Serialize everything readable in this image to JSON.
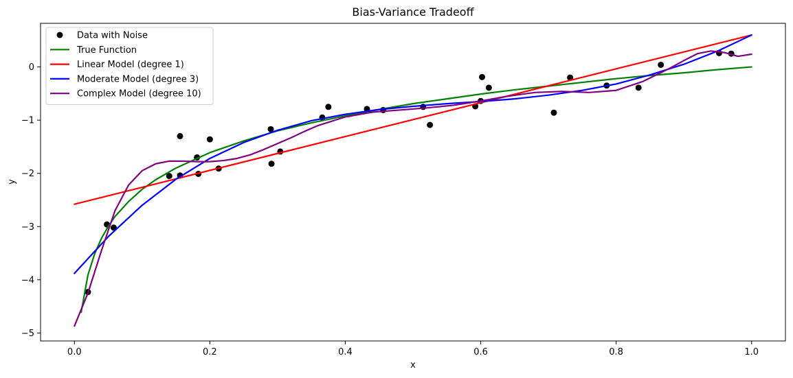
{
  "chart_data": {
    "type": "line",
    "title": "Bias-Variance Tradeoff",
    "xlabel": "x",
    "ylabel": "y",
    "xlim": [
      -0.05,
      1.05
    ],
    "ylim": [
      -5.15,
      0.82
    ],
    "xticks": [
      0.0,
      0.2,
      0.4,
      0.6,
      0.8,
      1.0
    ],
    "xtick_labels": [
      "0.0",
      "0.2",
      "0.4",
      "0.6",
      "0.8",
      "1.0"
    ],
    "yticks": [
      -5,
      -4,
      -3,
      -2,
      -1,
      0
    ],
    "ytick_labels": [
      "−5",
      "−4",
      "−3",
      "−2",
      "−1",
      "0"
    ],
    "grid": false,
    "legend_position": "top-left",
    "scatter": {
      "name": "Data with Noise",
      "color": "#000000",
      "x": [
        0.02,
        0.048,
        0.058,
        0.14,
        0.156,
        0.156,
        0.181,
        0.183,
        0.2,
        0.213,
        0.29,
        0.291,
        0.304,
        0.366,
        0.375,
        0.432,
        0.456,
        0.515,
        0.525,
        0.592,
        0.6,
        0.602,
        0.612,
        0.708,
        0.732,
        0.786,
        0.833,
        0.866,
        0.952,
        0.97
      ],
      "y": [
        -4.23,
        -2.96,
        -3.02,
        -2.05,
        -1.3,
        -2.04,
        -1.7,
        -2.01,
        -1.36,
        -1.91,
        -1.17,
        -1.82,
        -1.59,
        -0.95,
        -0.75,
        -0.79,
        -0.81,
        -0.75,
        -1.09,
        -0.74,
        -0.64,
        -0.19,
        -0.39,
        -0.86,
        -0.2,
        -0.35,
        -0.39,
        0.04,
        0.26,
        0.25
      ]
    },
    "series": [
      {
        "name": "True Function",
        "color": "#008000",
        "x": [
          0.01,
          0.02,
          0.03,
          0.04,
          0.05,
          0.06,
          0.08,
          0.1,
          0.12,
          0.15,
          0.2,
          0.25,
          0.3,
          0.35,
          0.4,
          0.45,
          0.5,
          0.55,
          0.6,
          0.65,
          0.7,
          0.75,
          0.8,
          0.85,
          0.9,
          0.95,
          1.0
        ],
        "y": [
          -4.61,
          -3.91,
          -3.51,
          -3.22,
          -3.0,
          -2.81,
          -2.53,
          -2.3,
          -2.12,
          -1.9,
          -1.61,
          -1.39,
          -1.2,
          -1.05,
          -0.92,
          -0.8,
          -0.69,
          -0.6,
          -0.51,
          -0.43,
          -0.36,
          -0.29,
          -0.22,
          -0.16,
          -0.11,
          -0.05,
          0.0
        ]
      },
      {
        "name": "Linear Model (degree 1)",
        "color": "#ff0000",
        "x": [
          0.0,
          1.0
        ],
        "y": [
          -2.58,
          0.6
        ]
      },
      {
        "name": "Moderate Model (degree 3)",
        "color": "#0000ff",
        "x": [
          0.0,
          0.05,
          0.1,
          0.15,
          0.2,
          0.25,
          0.3,
          0.35,
          0.4,
          0.45,
          0.5,
          0.55,
          0.6,
          0.65,
          0.7,
          0.75,
          0.8,
          0.85,
          0.9,
          0.95,
          1.0
        ],
        "y": [
          -3.88,
          -3.19,
          -2.6,
          -2.11,
          -1.72,
          -1.42,
          -1.19,
          -1.01,
          -0.89,
          -0.8,
          -0.74,
          -0.69,
          -0.65,
          -0.6,
          -0.53,
          -0.44,
          -0.32,
          -0.15,
          0.05,
          0.3,
          0.6
        ]
      },
      {
        "name": "Complex Model (degree 10)",
        "color": "#800080",
        "x": [
          0.0,
          0.02,
          0.04,
          0.06,
          0.08,
          0.1,
          0.12,
          0.14,
          0.16,
          0.18,
          0.2,
          0.22,
          0.24,
          0.26,
          0.28,
          0.3,
          0.32,
          0.34,
          0.36,
          0.38,
          0.4,
          0.44,
          0.48,
          0.52,
          0.56,
          0.6,
          0.64,
          0.68,
          0.72,
          0.76,
          0.8,
          0.84,
          0.88,
          0.9,
          0.92,
          0.94,
          0.96,
          0.98,
          1.0
        ],
        "y": [
          -4.87,
          -4.25,
          -3.45,
          -2.7,
          -2.22,
          -1.95,
          -1.82,
          -1.77,
          -1.77,
          -1.78,
          -1.78,
          -1.76,
          -1.72,
          -1.65,
          -1.55,
          -1.44,
          -1.33,
          -1.21,
          -1.1,
          -1.02,
          -0.94,
          -0.85,
          -0.81,
          -0.77,
          -0.72,
          -0.64,
          -0.55,
          -0.48,
          -0.46,
          -0.48,
          -0.44,
          -0.27,
          -0.02,
          0.12,
          0.25,
          0.3,
          0.27,
          0.2,
          0.24
        ]
      }
    ]
  }
}
